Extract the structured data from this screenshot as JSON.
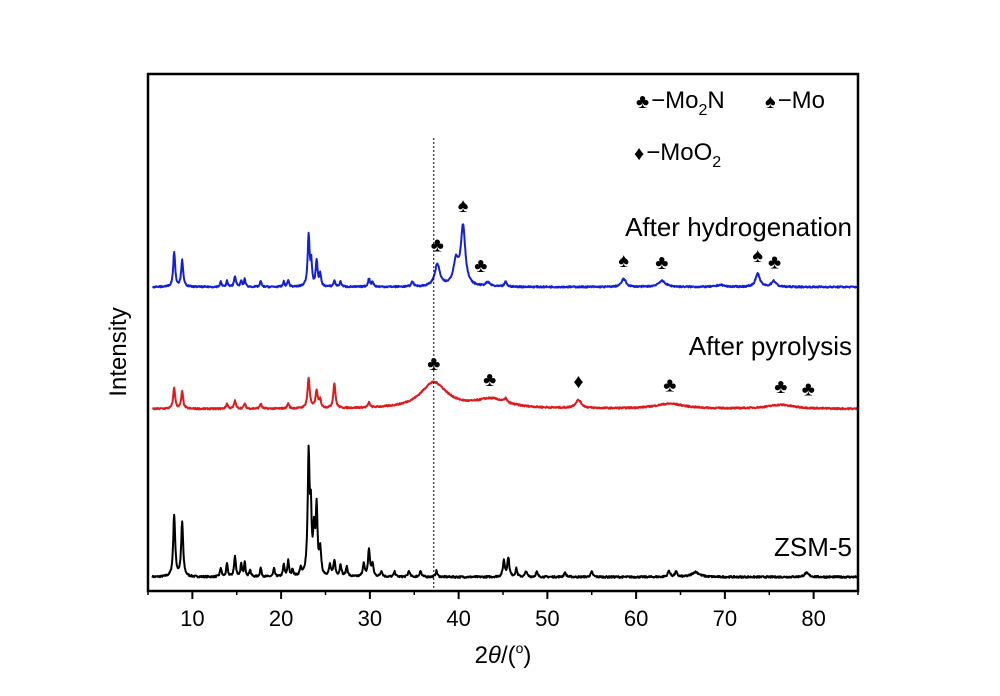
{
  "chart_data": {
    "type": "line",
    "title": "",
    "xlabel": "2θ/(°)",
    "xlabel_parts": {
      "pre": "2",
      "theta": "θ",
      "post": "/(",
      "deg": "o",
      "close": ")"
    },
    "ylabel": "Intensity",
    "xlim": [
      5,
      85
    ],
    "xticks": [
      10,
      20,
      30,
      40,
      50,
      60,
      70,
      80
    ],
    "yticks": "none",
    "grid": false,
    "reference_line_x": 37.2,
    "legend": [
      {
        "symbol": "♣",
        "text": "−Mo",
        "sub": "2",
        "after": "N",
        "phase": "Mo2N"
      },
      {
        "symbol": "♠",
        "text": "−Mo",
        "sub": "",
        "after": "",
        "phase": "Mo"
      },
      {
        "symbol": "♦",
        "text": "−MoO",
        "sub": "2",
        "after": "",
        "phase": "MoO2"
      }
    ],
    "series": [
      {
        "name": "ZSM-5",
        "color": "#000000",
        "baseline": 0.0,
        "noise": 0.18,
        "peaks": [
          {
            "x": 7.95,
            "h": 6.2,
            "w": 0.13
          },
          {
            "x": 8.85,
            "h": 5.4,
            "w": 0.13
          },
          {
            "x": 13.2,
            "h": 0.9,
            "w": 0.1
          },
          {
            "x": 13.9,
            "h": 1.3,
            "w": 0.1
          },
          {
            "x": 14.8,
            "h": 2.0,
            "w": 0.12
          },
          {
            "x": 15.5,
            "h": 1.2,
            "w": 0.1
          },
          {
            "x": 15.9,
            "h": 1.4,
            "w": 0.1
          },
          {
            "x": 16.5,
            "h": 0.7,
            "w": 0.1
          },
          {
            "x": 17.7,
            "h": 0.9,
            "w": 0.1
          },
          {
            "x": 19.2,
            "h": 0.8,
            "w": 0.1
          },
          {
            "x": 20.3,
            "h": 1.2,
            "w": 0.1
          },
          {
            "x": 20.8,
            "h": 1.6,
            "w": 0.1
          },
          {
            "x": 21.3,
            "h": 0.7,
            "w": 0.1
          },
          {
            "x": 22.2,
            "h": 0.8,
            "w": 0.1
          },
          {
            "x": 23.1,
            "h": 12.0,
            "w": 0.13
          },
          {
            "x": 23.35,
            "h": 5.5,
            "w": 0.1
          },
          {
            "x": 23.7,
            "h": 4.0,
            "w": 0.12
          },
          {
            "x": 24.0,
            "h": 6.6,
            "w": 0.12
          },
          {
            "x": 24.4,
            "h": 2.6,
            "w": 0.12
          },
          {
            "x": 25.5,
            "h": 1.1,
            "w": 0.12
          },
          {
            "x": 26.0,
            "h": 1.6,
            "w": 0.12
          },
          {
            "x": 26.7,
            "h": 1.2,
            "w": 0.12
          },
          {
            "x": 27.4,
            "h": 1.0,
            "w": 0.12
          },
          {
            "x": 29.3,
            "h": 1.3,
            "w": 0.12
          },
          {
            "x": 29.9,
            "h": 2.7,
            "w": 0.13
          },
          {
            "x": 30.3,
            "h": 1.2,
            "w": 0.12
          },
          {
            "x": 31.3,
            "h": 0.6,
            "w": 0.12
          },
          {
            "x": 32.8,
            "h": 0.5,
            "w": 0.12
          },
          {
            "x": 34.4,
            "h": 0.6,
            "w": 0.12
          },
          {
            "x": 35.7,
            "h": 0.6,
            "w": 0.12
          },
          {
            "x": 37.5,
            "h": 0.6,
            "w": 0.12
          },
          {
            "x": 45.1,
            "h": 1.6,
            "w": 0.13
          },
          {
            "x": 45.6,
            "h": 1.9,
            "w": 0.13
          },
          {
            "x": 46.5,
            "h": 0.8,
            "w": 0.12
          },
          {
            "x": 47.6,
            "h": 0.6,
            "w": 0.12
          },
          {
            "x": 48.8,
            "h": 0.5,
            "w": 0.12
          },
          {
            "x": 52.0,
            "h": 0.4,
            "w": 0.15
          },
          {
            "x": 55.0,
            "h": 0.5,
            "w": 0.15
          },
          {
            "x": 63.7,
            "h": 0.6,
            "w": 0.15
          },
          {
            "x": 64.5,
            "h": 0.5,
            "w": 0.15
          },
          {
            "x": 66.7,
            "h": 0.5,
            "w": 0.5
          },
          {
            "x": 79.2,
            "h": 0.4,
            "w": 0.3
          }
        ]
      },
      {
        "name": "After pyrolysis",
        "color": "#e0191b",
        "baseline": 0.0,
        "noise": 0.15,
        "peaks": [
          {
            "x": 7.95,
            "h": 2.1,
            "w": 0.13
          },
          {
            "x": 8.85,
            "h": 1.7,
            "w": 0.13
          },
          {
            "x": 13.9,
            "h": 0.5,
            "w": 0.12
          },
          {
            "x": 14.8,
            "h": 0.8,
            "w": 0.12
          },
          {
            "x": 15.9,
            "h": 0.5,
            "w": 0.12
          },
          {
            "x": 17.7,
            "h": 0.5,
            "w": 0.12
          },
          {
            "x": 20.8,
            "h": 0.5,
            "w": 0.12
          },
          {
            "x": 23.1,
            "h": 3.0,
            "w": 0.15
          },
          {
            "x": 24.0,
            "h": 1.7,
            "w": 0.15
          },
          {
            "x": 24.4,
            "h": 0.8,
            "w": 0.12
          },
          {
            "x": 26.0,
            "h": 2.5,
            "w": 0.14
          },
          {
            "x": 29.9,
            "h": 0.5,
            "w": 0.12
          },
          {
            "x": 37.2,
            "h": 2.6,
            "w": 1.8
          },
          {
            "x": 43.7,
            "h": 0.9,
            "w": 2.2
          },
          {
            "x": 45.3,
            "h": 0.4,
            "w": 0.15
          },
          {
            "x": 53.5,
            "h": 0.8,
            "w": 0.4
          },
          {
            "x": 63.8,
            "h": 0.5,
            "w": 2.0
          },
          {
            "x": 76.3,
            "h": 0.4,
            "w": 1.8
          }
        ]
      },
      {
        "name": "After hydrogenation",
        "color": "#1420d8",
        "baseline": 0.0,
        "noise": 0.15,
        "peaks": [
          {
            "x": 7.95,
            "h": 3.5,
            "w": 0.13
          },
          {
            "x": 8.85,
            "h": 2.7,
            "w": 0.13
          },
          {
            "x": 13.2,
            "h": 0.5,
            "w": 0.1
          },
          {
            "x": 13.9,
            "h": 0.6,
            "w": 0.1
          },
          {
            "x": 14.8,
            "h": 1.1,
            "w": 0.12
          },
          {
            "x": 15.5,
            "h": 0.6,
            "w": 0.1
          },
          {
            "x": 15.9,
            "h": 0.8,
            "w": 0.1
          },
          {
            "x": 17.7,
            "h": 0.6,
            "w": 0.1
          },
          {
            "x": 20.3,
            "h": 0.5,
            "w": 0.1
          },
          {
            "x": 20.8,
            "h": 0.7,
            "w": 0.1
          },
          {
            "x": 23.1,
            "h": 5.2,
            "w": 0.13
          },
          {
            "x": 23.4,
            "h": 2.2,
            "w": 0.1
          },
          {
            "x": 24.0,
            "h": 2.6,
            "w": 0.12
          },
          {
            "x": 24.4,
            "h": 1.2,
            "w": 0.12
          },
          {
            "x": 26.0,
            "h": 0.6,
            "w": 0.12
          },
          {
            "x": 26.7,
            "h": 0.5,
            "w": 0.12
          },
          {
            "x": 29.9,
            "h": 0.8,
            "w": 0.13
          },
          {
            "x": 30.3,
            "h": 0.5,
            "w": 0.12
          },
          {
            "x": 34.8,
            "h": 0.5,
            "w": 0.15
          },
          {
            "x": 37.6,
            "h": 2.2,
            "w": 0.35
          },
          {
            "x": 39.7,
            "h": 2.4,
            "w": 0.35
          },
          {
            "x": 40.5,
            "h": 5.9,
            "w": 0.3
          },
          {
            "x": 43.3,
            "h": 0.4,
            "w": 0.3
          },
          {
            "x": 45.3,
            "h": 0.5,
            "w": 0.15
          },
          {
            "x": 58.6,
            "h": 0.8,
            "w": 0.3
          },
          {
            "x": 62.9,
            "h": 0.6,
            "w": 0.5
          },
          {
            "x": 69.5,
            "h": 0.2,
            "w": 0.5
          },
          {
            "x": 73.7,
            "h": 1.3,
            "w": 0.3
          },
          {
            "x": 75.5,
            "h": 0.6,
            "w": 0.3
          }
        ]
      }
    ],
    "series_labels": [
      "After hydrogenation",
      "After pyrolysis",
      "ZSM-5"
    ],
    "peak_markers": [
      {
        "series": "After hydrogenation",
        "x": 37.6,
        "symbol": "♣"
      },
      {
        "series": "After hydrogenation",
        "x": 40.5,
        "symbol": "♠"
      },
      {
        "series": "After hydrogenation",
        "x": 42.5,
        "symbol": "♣"
      },
      {
        "series": "After hydrogenation",
        "x": 58.6,
        "symbol": "♠"
      },
      {
        "series": "After hydrogenation",
        "x": 62.9,
        "symbol": "♣"
      },
      {
        "series": "After hydrogenation",
        "x": 73.7,
        "symbol": "♠"
      },
      {
        "series": "After hydrogenation",
        "x": 75.6,
        "symbol": "♣"
      },
      {
        "series": "After pyrolysis",
        "x": 37.2,
        "symbol": "♣"
      },
      {
        "series": "After pyrolysis",
        "x": 43.5,
        "symbol": "♣"
      },
      {
        "series": "After pyrolysis",
        "x": 53.5,
        "symbol": "♦"
      },
      {
        "series": "After pyrolysis",
        "x": 63.8,
        "symbol": "♣"
      },
      {
        "series": "After pyrolysis",
        "x": 76.3,
        "symbol": "♣"
      },
      {
        "series": "After pyrolysis",
        "x": 79.4,
        "symbol": "♣"
      }
    ]
  }
}
